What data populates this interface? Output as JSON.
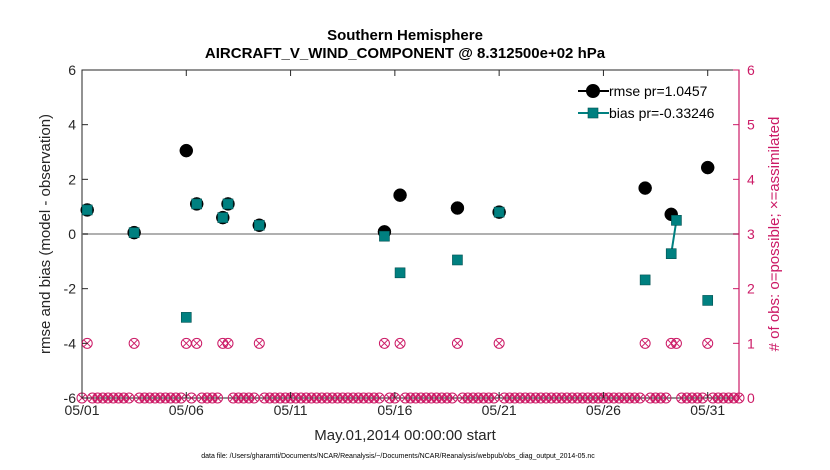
{
  "chart_data": {
    "type": "scatter",
    "title": "Southern Hemisphere",
    "subtitle": "AIRCRAFT_V_WIND_COMPONENT @ 8.312500e+02 hPa",
    "xlabel": "May.01,2014 00:00:00 start",
    "ylabel_left": "rmse and bias (model - observation)",
    "ylabel_right": "# of obs: o=possible; ×=assimilated",
    "footnote": "data file: /Users/gharamti/Documents/NCAR/Reanalysis/~/Documents/NCAR/Reanalysis/webpub/obs_diag_output_2014-05.nc",
    "xlim": [
      1,
      32.5
    ],
    "ylim_left": [
      -6,
      6
    ],
    "ylim_right": [
      0,
      6
    ],
    "x_ticks": [
      1,
      6,
      11,
      16,
      21,
      26,
      31
    ],
    "x_tick_labels": [
      "05/01",
      "05/06",
      "05/11",
      "05/16",
      "05/21",
      "05/26",
      "05/31"
    ],
    "y_ticks_left": [
      -6,
      -4,
      -2,
      0,
      2,
      4,
      6
    ],
    "y_ticks_right": [
      0,
      1,
      2,
      3,
      4,
      5,
      6
    ],
    "grid": false,
    "legend_position": "top-right",
    "series": [
      {
        "name": "rmse pr=1.0457",
        "color": "#000000",
        "marker": "circle",
        "points": [
          {
            "x": 1.25,
            "y": 0.88
          },
          {
            "x": 3.5,
            "y": 0.05
          },
          {
            "x": 6.0,
            "y": 3.05
          },
          {
            "x": 6.5,
            "y": 1.1
          },
          {
            "x": 7.75,
            "y": 0.6
          },
          {
            "x": 8.0,
            "y": 1.1
          },
          {
            "x": 9.5,
            "y": 0.32
          },
          {
            "x": 15.5,
            "y": 0.08
          },
          {
            "x": 16.25,
            "y": 1.42
          },
          {
            "x": 19.0,
            "y": 0.95
          },
          {
            "x": 21.0,
            "y": 0.8
          },
          {
            "x": 28.0,
            "y": 1.68
          },
          {
            "x": 29.25,
            "y": 0.72
          },
          {
            "x": 31.0,
            "y": 2.43
          }
        ]
      },
      {
        "name": "bias pr=-0.33246",
        "color": "#008080",
        "marker": "square",
        "points": [
          {
            "x": 1.25,
            "y": 0.88
          },
          {
            "x": 3.5,
            "y": 0.05
          },
          {
            "x": 6.0,
            "y": -3.05
          },
          {
            "x": 6.5,
            "y": 1.1
          },
          {
            "x": 7.75,
            "y": 0.6
          },
          {
            "x": 8.0,
            "y": 1.1
          },
          {
            "x": 9.5,
            "y": 0.32
          },
          {
            "x": 15.5,
            "y": -0.08
          },
          {
            "x": 16.25,
            "y": -1.42
          },
          {
            "x": 19.0,
            "y": -0.95
          },
          {
            "x": 21.0,
            "y": 0.8
          },
          {
            "x": 28.0,
            "y": -1.68
          },
          {
            "x": 29.25,
            "y": -0.72
          },
          {
            "x": 29.5,
            "y": 0.5
          },
          {
            "x": 31.0,
            "y": -2.43
          }
        ],
        "connected_segments": [
          [
            12,
            13
          ]
        ]
      }
    ],
    "obs_possible": {
      "color": "#cc1a66",
      "one_obs_x": [
        1.25,
        3.5,
        6.0,
        6.5,
        7.75,
        8.0,
        9.5,
        15.5,
        16.25,
        19.0,
        21.0,
        28.0,
        29.25,
        29.5,
        31.0
      ],
      "zero_obs_x_range": [
        1.0,
        32.5
      ],
      "zero_obs_step": 0.25
    }
  }
}
